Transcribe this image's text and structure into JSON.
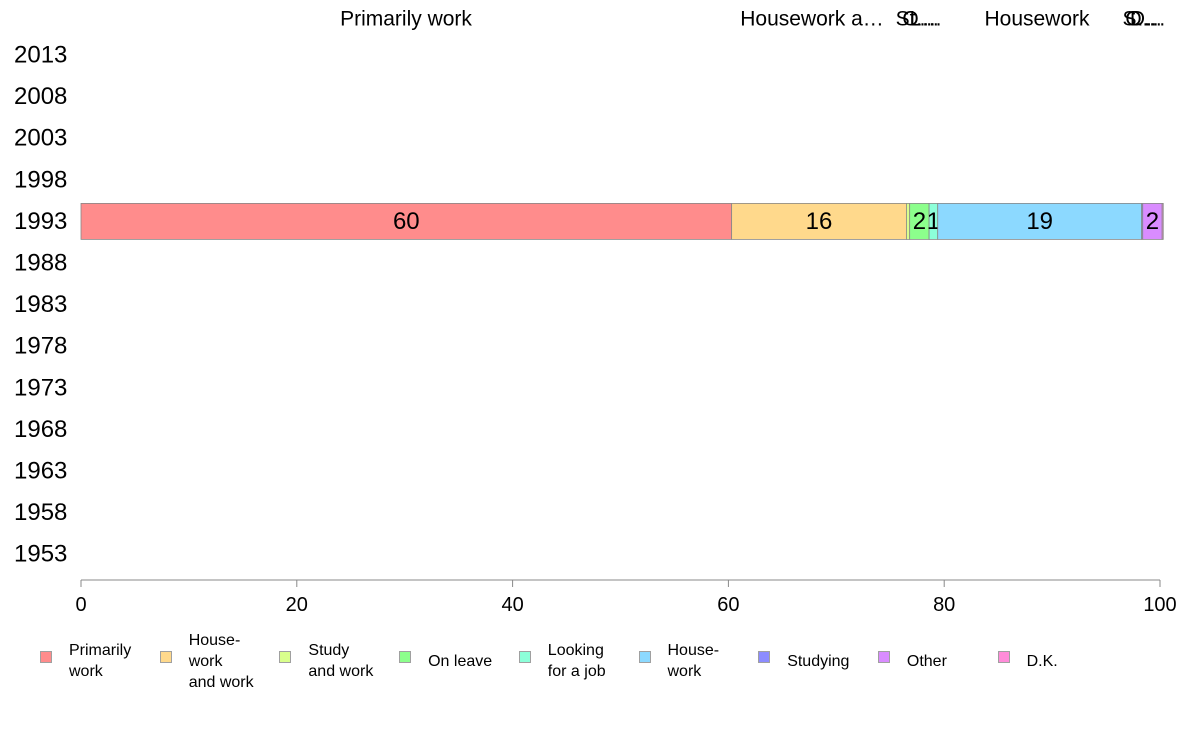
{
  "chart_data": {
    "type": "bar",
    "orientation": "horizontal",
    "stacked": true,
    "y_categories": [
      "2013",
      "2008",
      "2003",
      "1998",
      "1993",
      "1988",
      "1983",
      "1978",
      "1973",
      "1968",
      "1963",
      "1958",
      "1953"
    ],
    "xlim": [
      0,
      100
    ],
    "x_ticks": [
      "0",
      "20",
      "40",
      "60",
      "80",
      "100"
    ],
    "top_labels": [
      "Primarily work",
      "Housework a…",
      "St…",
      "O…",
      "L…",
      "Housework",
      "S…",
      "O…",
      "D…"
    ],
    "series": [
      {
        "name": "Primarily\nwork",
        "color": "#ff8c8c",
        "values": {
          "1993": 60.3
        },
        "label": "60"
      },
      {
        "name": "House-\nwork\nand work",
        "color": "#ffd98c",
        "values": {
          "1993": 16.2
        },
        "label": "16"
      },
      {
        "name": "Study\nand work",
        "color": "#d9ff8c",
        "values": {
          "1993": 0.3
        },
        "label": ""
      },
      {
        "name": "On leave",
        "color": "#8cff8c",
        "values": {
          "1993": 1.8
        },
        "label": "2"
      },
      {
        "name": "Looking\nfor a job",
        "color": "#8cffd9",
        "values": {
          "1993": 0.8
        },
        "label": "1"
      },
      {
        "name": "House-\nwork",
        "color": "#8cd9ff",
        "values": {
          "1993": 18.9
        },
        "label": "19"
      },
      {
        "name": "Studying",
        "color": "#8c8cff",
        "values": {
          "1993": 0.1
        },
        "label": ""
      },
      {
        "name": "Other",
        "color": "#d98cff",
        "values": {
          "1993": 1.8
        },
        "label": "2"
      },
      {
        "name": "D.K.",
        "color": "#ff8cd9",
        "values": {
          "1993": 0.1
        },
        "label": ""
      }
    ],
    "legend_position": "bottom",
    "grid": false
  }
}
